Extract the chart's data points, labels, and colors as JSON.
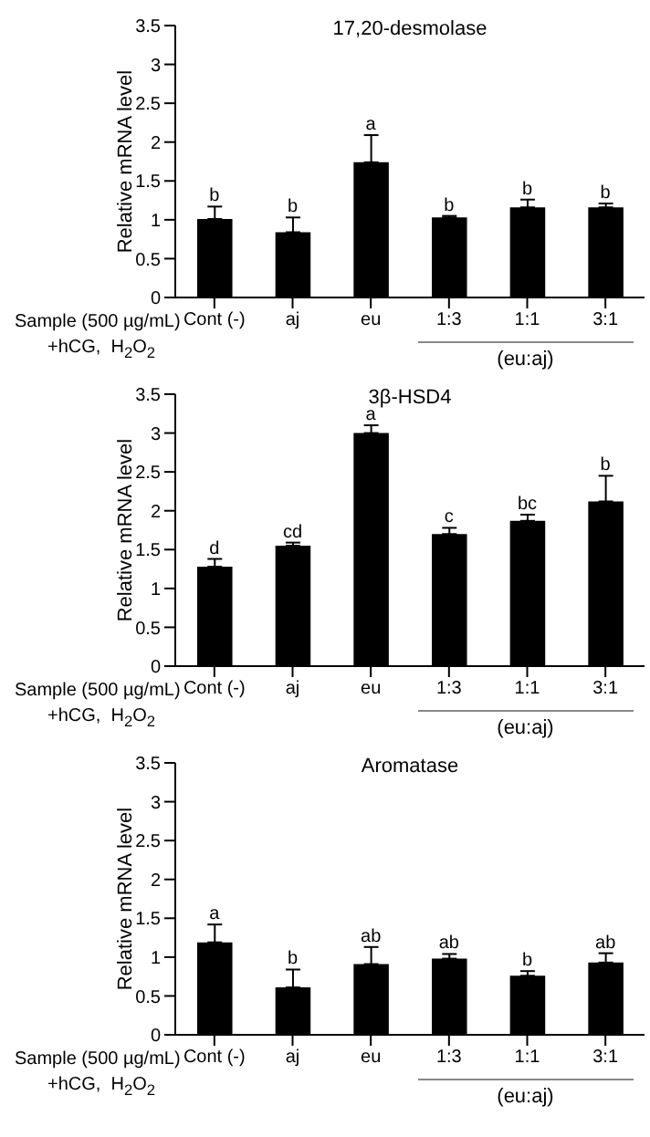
{
  "chart_data": [
    {
      "type": "bar",
      "title": "17,20-desmolase",
      "ylabel": "Relative mRNA level",
      "categories": [
        "Cont (-)",
        "aj",
        "eu",
        "1:3",
        "1:1",
        "3:1"
      ],
      "values": [
        1.01,
        0.84,
        1.74,
        1.03,
        1.16,
        1.16
      ],
      "errors": [
        [
          1.01,
          1.17
        ],
        [
          0.84,
          1.03
        ],
        [
          1.74,
          2.09
        ],
        [
          1.03,
          1.05
        ],
        [
          1.16,
          1.26
        ],
        [
          1.16,
          1.21
        ]
      ],
      "color": "#000000",
      "ylim": [
        0,
        3.5
      ],
      "yticks": [
        0,
        0.5,
        1,
        1.5,
        2,
        2.5,
        3,
        3.5
      ],
      "grid": false,
      "legend": false,
      "annotations": [
        {
          "text": "b",
          "x": "Cont (-)",
          "y": 1.01
        },
        {
          "text": "b",
          "x": "aj",
          "y": 0.84
        },
        {
          "text": "a",
          "x": "eu",
          "y": 1.74
        },
        {
          "text": "b",
          "x": "1:3",
          "y": 1.03
        },
        {
          "text": "b",
          "x": "1:1",
          "y": 1.16
        },
        {
          "text": "b",
          "x": "3:1",
          "y": 1.16
        },
        "Sample (500 µg/mL)",
        "+hCG,  H$_{2}$O$_{2}$",
        "(eu:aj)"
      ]
    },
    {
      "type": "bar",
      "title": "3β-HSD4",
      "ylabel": "Relative mRNA level",
      "categories": [
        "Cont (-)",
        "aj",
        "eu",
        "1:3",
        "1:1",
        "3:1"
      ],
      "values": [
        1.28,
        1.55,
        3.0,
        1.7,
        1.87,
        2.12
      ],
      "errors": [
        [
          1.28,
          1.38
        ],
        [
          1.55,
          1.59
        ],
        [
          3.0,
          3.1
        ],
        [
          1.7,
          1.78
        ],
        [
          1.87,
          1.95
        ],
        [
          2.12,
          2.45
        ]
      ],
      "color": "#000000",
      "ylim": [
        0,
        3.5
      ],
      "yticks": [
        0,
        0.5,
        1,
        1.5,
        2,
        2.5,
        3,
        3.5
      ],
      "grid": false,
      "legend": false,
      "annotations": [
        {
          "text": "d",
          "x": "Cont (-)",
          "y": 1.28
        },
        {
          "text": "cd",
          "x": "aj",
          "y": 1.55
        },
        {
          "text": "a",
          "x": "eu",
          "y": 3.0
        },
        {
          "text": "c",
          "x": "1:3",
          "y": 1.7
        },
        {
          "text": "bc",
          "x": "1:1",
          "y": 1.87
        },
        {
          "text": "b",
          "x": "3:1",
          "y": 2.12
        },
        "Sample (500 µg/mL)",
        "+hCG,  H$_{2}$O$_{2}$",
        "(eu:aj)"
      ]
    },
    {
      "type": "bar",
      "title": "Aromatase",
      "ylabel": "Relative mRNA level",
      "categories": [
        "Cont (-)",
        "aj",
        "eu",
        "1:3",
        "1:1",
        "3:1"
      ],
      "values": [
        1.19,
        0.61,
        0.91,
        0.98,
        0.76,
        0.93
      ],
      "errors": [
        [
          1.19,
          1.42
        ],
        [
          0.61,
          0.84
        ],
        [
          0.91,
          1.13
        ],
        [
          0.98,
          1.04
        ],
        [
          0.76,
          0.82
        ],
        [
          0.93,
          1.05
        ]
      ],
      "color": "#000000",
      "ylim": [
        0,
        3.5
      ],
      "yticks": [
        0,
        0.5,
        1,
        1.5,
        2,
        2.5,
        3,
        3.5
      ],
      "grid": false,
      "legend": false,
      "annotations": [
        {
          "text": "a",
          "x": "Cont (-)",
          "y": 1.19
        },
        {
          "text": "b",
          "x": "aj",
          "y": 0.61
        },
        {
          "text": "ab",
          "x": "eu",
          "y": 0.91
        },
        {
          "text": "ab",
          "x": "1:3",
          "y": 0.98
        },
        {
          "text": "b",
          "x": "1:1",
          "y": 0.76
        },
        {
          "text": "ab",
          "x": "3:1",
          "y": 0.93
        },
        "Sample (500 µg/mL)",
        "+hCG,  H$_{2}$O$_{2}$",
        "(eu:aj)"
      ]
    }
  ]
}
